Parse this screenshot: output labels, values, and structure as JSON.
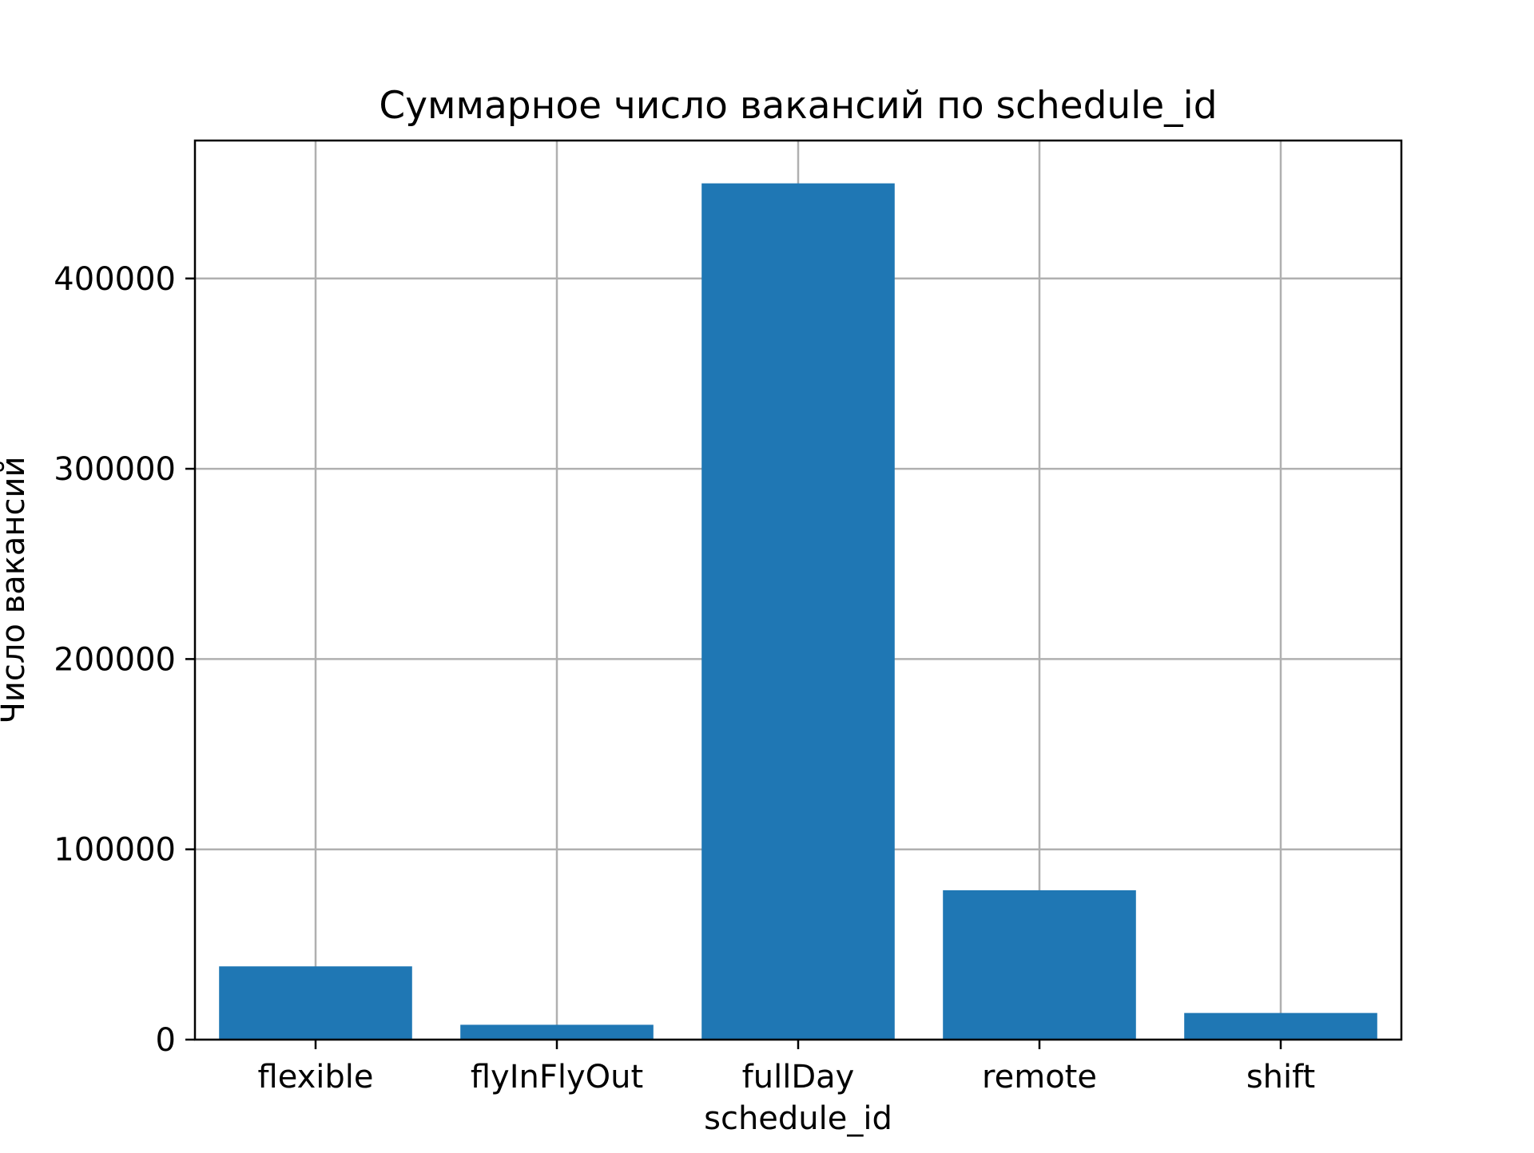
{
  "chart_data": {
    "type": "bar",
    "title": "Суммарное число вакансий по schedule_id",
    "xlabel": "schedule_id",
    "ylabel": "Число вакансий",
    "categories": [
      "flexible",
      "flyInFlyOut",
      "fullDay",
      "remote",
      "shift"
    ],
    "values": [
      38500,
      7800,
      450000,
      78500,
      14000
    ],
    "ylim": [
      0,
      472500
    ],
    "yticks": [
      0,
      100000,
      200000,
      300000,
      400000
    ],
    "ytick_labels": [
      "0",
      "100000",
      "200000",
      "300000",
      "400000"
    ],
    "grid": true,
    "legend": "none",
    "bar_color": "#1f77b4"
  }
}
